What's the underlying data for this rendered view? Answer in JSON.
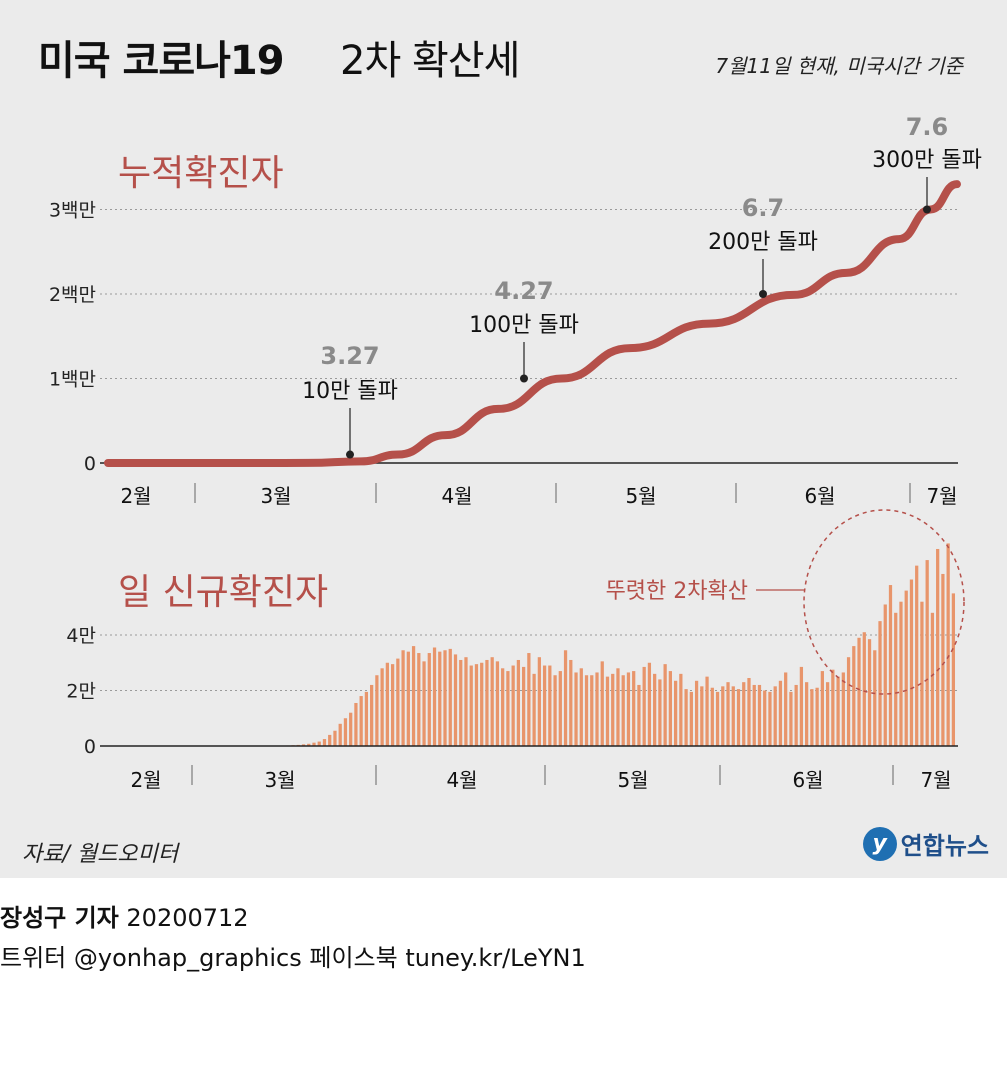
{
  "header": {
    "title_main": "미국 코로나19",
    "title_sub": "2차 확산세",
    "date_note": "7월11일 현재, 미국시간 기준"
  },
  "chart_data": [
    {
      "type": "line",
      "title": "누적확진자",
      "y_unit_labels": [
        "0",
        "1백만",
        "2백만",
        "3백만"
      ],
      "ylim": [
        0,
        3300000
      ],
      "months": [
        "2월",
        "3월",
        "4월",
        "5월",
        "6월",
        "7월"
      ],
      "x": [
        "2/1",
        "2/15",
        "3/1",
        "3/10",
        "3/20",
        "3/27",
        "4/5",
        "4/15",
        "4/27",
        "5/10",
        "5/25",
        "6/10",
        "6/20",
        "6/30",
        "7/6",
        "7/11"
      ],
      "values": [
        0,
        0,
        30,
        1000,
        19000,
        100000,
        330000,
        640000,
        1000000,
        1360000,
        1650000,
        1990000,
        2250000,
        2650000,
        3000000,
        3300000
      ],
      "annotations": [
        {
          "date": "3.27",
          "text": "10만 돌파",
          "value": 100000
        },
        {
          "date": "4.27",
          "text": "100만 돌파",
          "value": 1000000
        },
        {
          "date": "6.7",
          "text": "200만 돌파",
          "value": 2000000
        },
        {
          "date": "7.6",
          "text": "300만 돌파",
          "value": 3000000
        }
      ],
      "grid": true,
      "color": "#b5504a"
    },
    {
      "type": "bar",
      "title": "일 신규확진자",
      "y_unit_labels": [
        "0",
        "2만",
        "4만"
      ],
      "ylim": [
        0,
        75000
      ],
      "months": [
        "2월",
        "3월",
        "4월",
        "5월",
        "6월",
        "7월"
      ],
      "start_date": "3/1",
      "values": [
        0,
        0,
        0,
        20,
        30,
        50,
        80,
        100,
        150,
        200,
        300,
        400,
        600,
        800,
        1200,
        1600,
        2500,
        4000,
        5500,
        8000,
        10000,
        12000,
        15500,
        18000,
        19500,
        22000,
        25500,
        28000,
        30000,
        29500,
        31500,
        34500,
        34000,
        36000,
        33500,
        30500,
        33500,
        35500,
        34000,
        34500,
        35000,
        33000,
        31000,
        32000,
        29000,
        29500,
        30000,
        31000,
        32000,
        30500,
        28000,
        27000,
        29000,
        31000,
        28500,
        33500,
        26000,
        32000,
        29000,
        29000,
        25500,
        27000,
        34500,
        31000,
        26500,
        28000,
        25500,
        25500,
        26500,
        30500,
        25000,
        26000,
        28000,
        25500,
        26500,
        27000,
        22000,
        28500,
        30000,
        26000,
        24000,
        29500,
        27000,
        23500,
        26000,
        20500,
        19500,
        23500,
        21500,
        25000,
        21000,
        19500,
        21500,
        23000,
        21500,
        20500,
        23000,
        24500,
        22000,
        22000,
        20000,
        19500,
        21500,
        23500,
        26500,
        19500,
        22000,
        28500,
        23000,
        20500,
        21000,
        27000,
        23000,
        27500,
        25000,
        26500,
        32000,
        36000,
        39000,
        41000,
        38500,
        34500,
        45000,
        51000,
        58000,
        48000,
        52000,
        56000,
        60000,
        65000,
        52000,
        67000,
        48000,
        71000,
        62000,
        73000,
        55000
      ],
      "annotation": "뚜렷한 2차확산",
      "grid": true,
      "color": "#e8956b"
    }
  ],
  "footer": {
    "source": "자료/ 월드오미터",
    "logo_mark": "y",
    "logo_text": "연합뉴스",
    "reporter": "장성구 기자",
    "date_code": "20200712",
    "social": "트위터 @yonhap_graphics  페이스북 tuney.kr/LeYN1"
  }
}
